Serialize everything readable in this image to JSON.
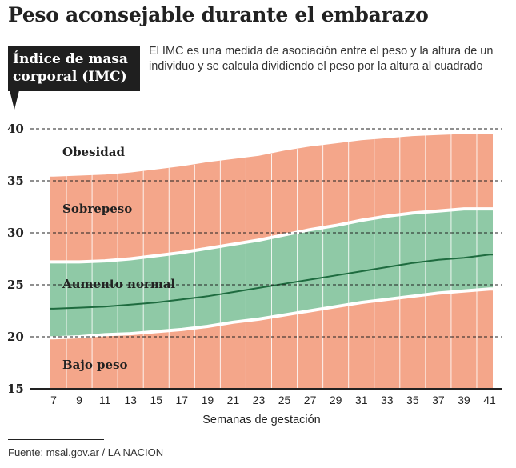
{
  "header": {
    "title": "Peso aconsejable durante el embarazo",
    "description": "El IMC es una medida de asociación  entre el peso y la altura de un individuo y se calcula dividiendo el peso por la altura al cuadrado"
  },
  "footer": {
    "source": "Fuente: msal.gov.ar / LA NACION"
  },
  "colors": {
    "salmon": "#f4a68a",
    "green": "#8fc9a6",
    "median_line": "#1e6b3f",
    "grid": "#222222",
    "band_border": "#ffffff"
  },
  "chart_data": {
    "type": "area",
    "title": "Peso aconsejable durante el embarazo",
    "ylabel": "Índice de masa corporal (IMC)",
    "xlabel": "Semanas de gestación",
    "x": [
      7,
      9,
      11,
      13,
      15,
      17,
      19,
      21,
      23,
      25,
      27,
      29,
      31,
      33,
      35,
      37,
      39,
      41
    ],
    "x_tick_labels": [
      "7",
      "9",
      "11",
      "13",
      "15",
      "17",
      "19",
      "21",
      "23",
      "25",
      "27",
      "29",
      "31",
      "33",
      "35",
      "37",
      "39",
      "41"
    ],
    "y_ticks": [
      15,
      20,
      25,
      30,
      35,
      40
    ],
    "ylim": [
      15,
      40
    ],
    "grid": true,
    "series": [
      {
        "values": [
          35.4,
          35.5,
          35.6,
          35.8,
          36.1,
          36.4,
          36.8,
          37.1,
          37.4,
          37.9,
          38.3,
          38.6,
          38.9,
          39.1,
          39.3,
          39.4,
          39.5,
          39.5
        ]
      },
      {
        "values": [
          27.2,
          27.2,
          27.3,
          27.5,
          27.8,
          28.1,
          28.5,
          28.9,
          29.3,
          29.8,
          30.3,
          30.7,
          31.2,
          31.6,
          31.9,
          32.1,
          32.3,
          32.3
        ]
      },
      {
        "values": [
          22.7,
          22.8,
          22.9,
          23.1,
          23.3,
          23.6,
          23.9,
          24.3,
          24.7,
          25.1,
          25.5,
          25.9,
          26.3,
          26.7,
          27.1,
          27.4,
          27.6,
          27.9
        ]
      },
      {
        "values": [
          19.9,
          20.0,
          20.2,
          20.3,
          20.5,
          20.7,
          21.0,
          21.4,
          21.7,
          22.1,
          22.5,
          22.9,
          23.3,
          23.6,
          23.9,
          24.2,
          24.4,
          24.6
        ]
      }
    ],
    "regions": [
      "Obesidad",
      "Sobrepeso",
      "Aumento normal",
      "Bajo peso"
    ]
  }
}
